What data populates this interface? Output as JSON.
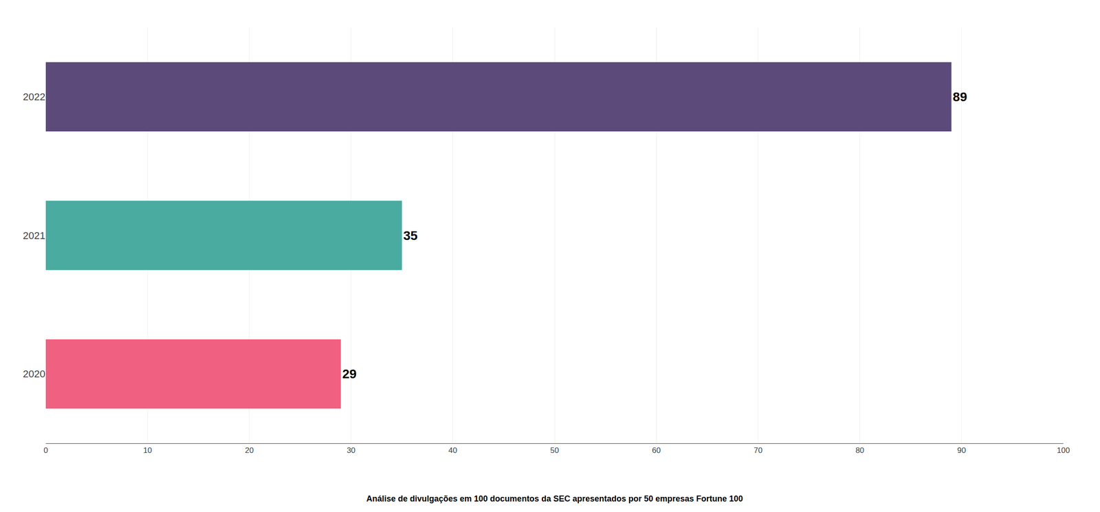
{
  "chart_data": {
    "type": "bar",
    "orientation": "horizontal",
    "categories": [
      "2020",
      "2021",
      "2022"
    ],
    "values": [
      29,
      35,
      89
    ],
    "colors": [
      "#f06080",
      "#4aaba0",
      "#5b4a7a"
    ],
    "xlim": [
      0,
      100
    ],
    "xticks": [
      0,
      10,
      20,
      30,
      40,
      50,
      60,
      70,
      80,
      90,
      100
    ],
    "grid": true,
    "data_labels": true,
    "caption": "Análise de divulgações em 100 documentos da SEC apresentados por 50 empresas Fortune 100"
  }
}
